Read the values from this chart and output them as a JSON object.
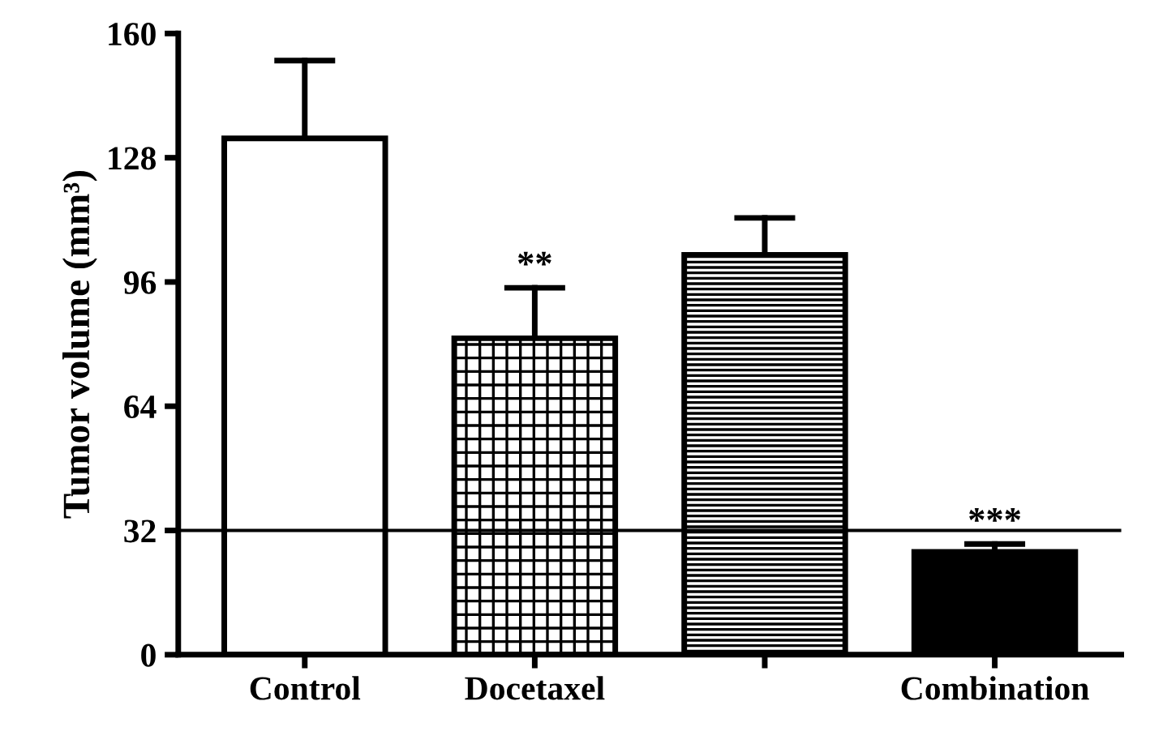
{
  "chart_data": {
    "type": "bar",
    "ylabel": "Tumor volume (mm³)",
    "categories": [
      "Control",
      "Docetaxel",
      null,
      "Combination"
    ],
    "values": [
      133,
      81.5,
      103,
      26.5
    ],
    "errors": [
      20,
      13,
      9.5,
      2
    ],
    "colors": [
      "#ffffff",
      "#ffffff",
      "#ffffff",
      "#000000"
    ],
    "ylim": [
      0,
      160
    ],
    "yticks": [
      0,
      32,
      64,
      96,
      128,
      160
    ],
    "grid": false,
    "ref_lines": [
      {
        "axis": "y",
        "value": 32,
        "color": "#000000"
      }
    ],
    "annotations": [
      {
        "text": "**",
        "x": "Docetaxel",
        "y": 94.5
      },
      {
        "text": "***",
        "x": "Combination",
        "y": 28.5
      }
    ]
  }
}
